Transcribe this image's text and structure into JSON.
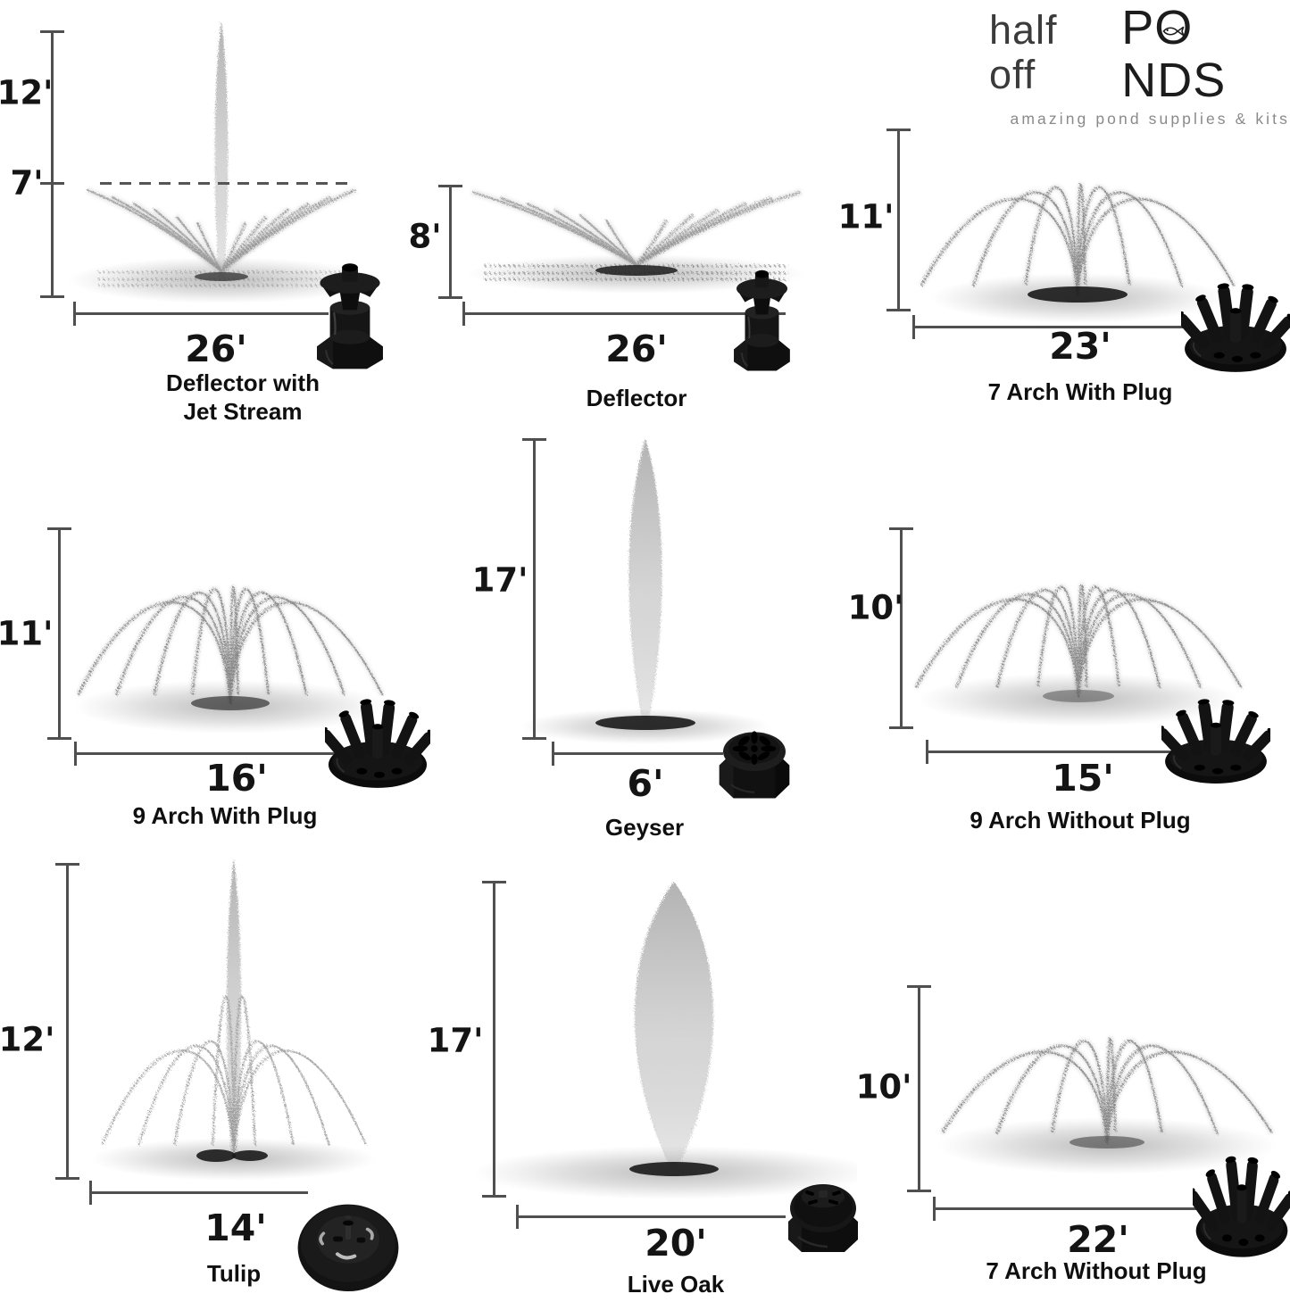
{
  "brand": {
    "line1_light": "half off",
    "line1_bold_pre": "P",
    "line1_bold_o": "O",
    "line1_bold_post": "NDS",
    "fish_icon": "fish-icon",
    "tagline": "amazing pond supplies & kits"
  },
  "colors": {
    "text": "#141414",
    "scale_line": "#4f4f4f",
    "spray_gray": "#8f8f8f",
    "tagline_gray": "#8a8a8a",
    "nozzle_black": "#131313"
  },
  "fountains": [
    {
      "name": "Deflector with Jet Stream",
      "name_lines": [
        "Deflector with",
        "Jet Stream"
      ],
      "height": "12'",
      "height_secondary": "7'",
      "width": "26'",
      "spray_pattern": "deflector-with-jet-stream",
      "nozzle_icon": "deflector-nozzle-photo"
    },
    {
      "name": "Deflector",
      "height": "8'",
      "width": "26'",
      "spray_pattern": "deflector",
      "nozzle_icon": "deflector-nozzle-photo"
    },
    {
      "name": "7 Arch With Plug",
      "height": "11'",
      "width": "23'",
      "arches": 7,
      "spray_pattern": "7-arch",
      "nozzle_icon": "arch-nozzle-photo"
    },
    {
      "name": "9 Arch With Plug",
      "height": "11'",
      "width": "16'",
      "arches": 9,
      "spray_pattern": "9-arch",
      "nozzle_icon": "arch-nozzle-photo"
    },
    {
      "name": "Geyser",
      "height": "17'",
      "width": "6'",
      "spray_pattern": "geyser-column",
      "nozzle_icon": "geyser-nozzle-photo"
    },
    {
      "name": "9 Arch Without Plug",
      "height": "10'",
      "width": "15'",
      "arches": 9,
      "spray_pattern": "9-arch",
      "nozzle_icon": "arch-nozzle-photo"
    },
    {
      "name": "Tulip",
      "height": "12'",
      "width": "14'",
      "spray_pattern": "tulip",
      "nozzle_icon": "tulip-nozzle-photo"
    },
    {
      "name": "Live Oak",
      "height": "17'",
      "width": "20'",
      "spray_pattern": "wide-column",
      "nozzle_icon": "liveoak-nozzle-photo"
    },
    {
      "name": "7 Arch Without Plug",
      "height": "10'",
      "width": "22'",
      "arches": 7,
      "spray_pattern": "7-arch",
      "nozzle_icon": "arch-nozzle-photo"
    }
  ]
}
